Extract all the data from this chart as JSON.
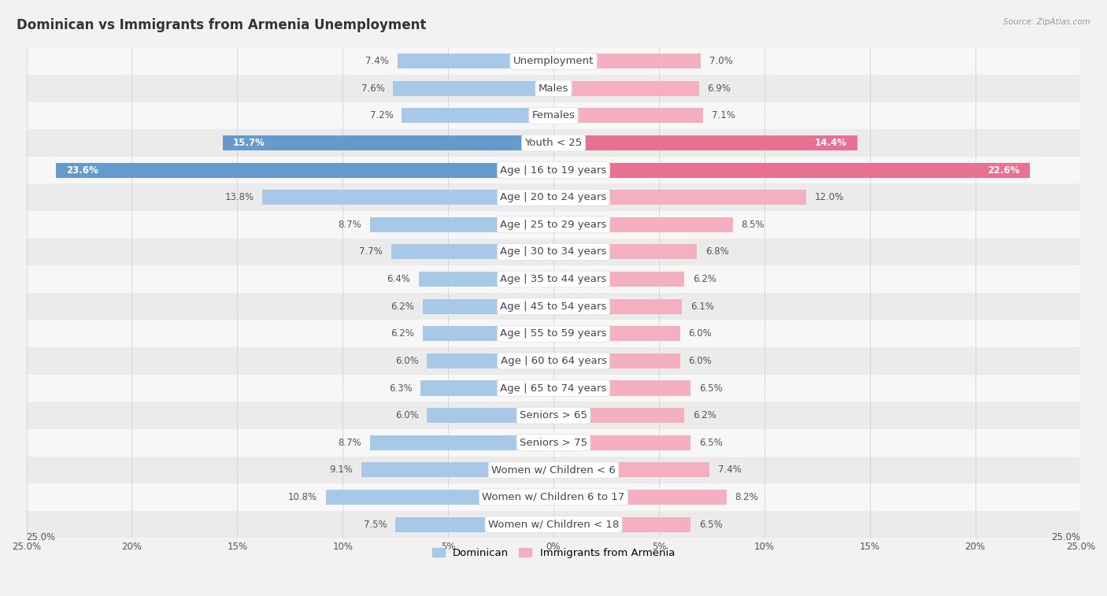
{
  "title": "Dominican vs Immigrants from Armenia Unemployment",
  "source": "Source: ZipAtlas.com",
  "categories": [
    "Unemployment",
    "Males",
    "Females",
    "Youth < 25",
    "Age | 16 to 19 years",
    "Age | 20 to 24 years",
    "Age | 25 to 29 years",
    "Age | 30 to 34 years",
    "Age | 35 to 44 years",
    "Age | 45 to 54 years",
    "Age | 55 to 59 years",
    "Age | 60 to 64 years",
    "Age | 65 to 74 years",
    "Seniors > 65",
    "Seniors > 75",
    "Women w/ Children < 6",
    "Women w/ Children 6 to 17",
    "Women w/ Children < 18"
  ],
  "dominican": [
    7.4,
    7.6,
    7.2,
    15.7,
    23.6,
    13.8,
    8.7,
    7.7,
    6.4,
    6.2,
    6.2,
    6.0,
    6.3,
    6.0,
    8.7,
    9.1,
    10.8,
    7.5
  ],
  "armenia": [
    7.0,
    6.9,
    7.1,
    14.4,
    22.6,
    12.0,
    8.5,
    6.8,
    6.2,
    6.1,
    6.0,
    6.0,
    6.5,
    6.2,
    6.5,
    7.4,
    8.2,
    6.5
  ],
  "dom_color_normal": "#a8c8e8",
  "arm_color_normal": "#f4b0c0",
  "dom_color_strong": "#6699cc",
  "arm_color_strong": "#e87090",
  "strong_rows": [
    3,
    4
  ],
  "bg_light": "#f7f7f7",
  "bg_dark": "#ebebeb",
  "xlim": 25.0,
  "bar_height": 0.55,
  "label_fontsize": 9.5,
  "title_fontsize": 12,
  "value_fontsize": 8.5,
  "xtick_labels": [
    "25.0%",
    "20%",
    "15%",
    "10%",
    "5%",
    "0%",
    "5%",
    "10%",
    "15%",
    "20%",
    "25.0%"
  ],
  "xtick_vals": [
    -25,
    -20,
    -15,
    -10,
    -5,
    0,
    5,
    10,
    15,
    20,
    25
  ]
}
